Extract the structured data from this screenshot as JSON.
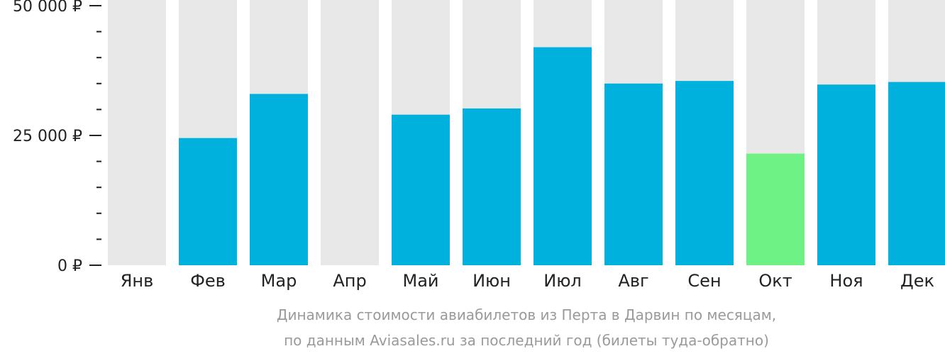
{
  "chart_data": {
    "type": "bar",
    "categories": [
      "Янв",
      "Фев",
      "Мар",
      "Апр",
      "Май",
      "Июн",
      "Июл",
      "Авг",
      "Сен",
      "Окт",
      "Ноя",
      "Дек"
    ],
    "values": [
      null,
      24500,
      33000,
      null,
      29000,
      30200,
      42000,
      35000,
      35500,
      21500,
      34800,
      35300
    ],
    "highlight_index": 9,
    "ylim": [
      0,
      50000
    ],
    "yticks": [
      {
        "value": 50000,
        "label": "50 000 ₽"
      },
      {
        "value": 25000,
        "label": "25 000 ₽"
      },
      {
        "value": 0,
        "label": "0 ₽"
      }
    ],
    "minor_ticks": [
      5000,
      10000,
      15000,
      20000,
      30000,
      35000,
      40000,
      45000
    ],
    "colors": {
      "bar": "#00b0dd",
      "highlight": "#6ef286",
      "background_bar": "#e8e8e8",
      "axis": "#222222"
    }
  },
  "caption": {
    "line1": "Динамика стоимости авиабилетов из Перта в Дарвин по месяцам,",
    "line2": "по данным Aviasales.ru за последний год (билеты туда-обратно)"
  }
}
